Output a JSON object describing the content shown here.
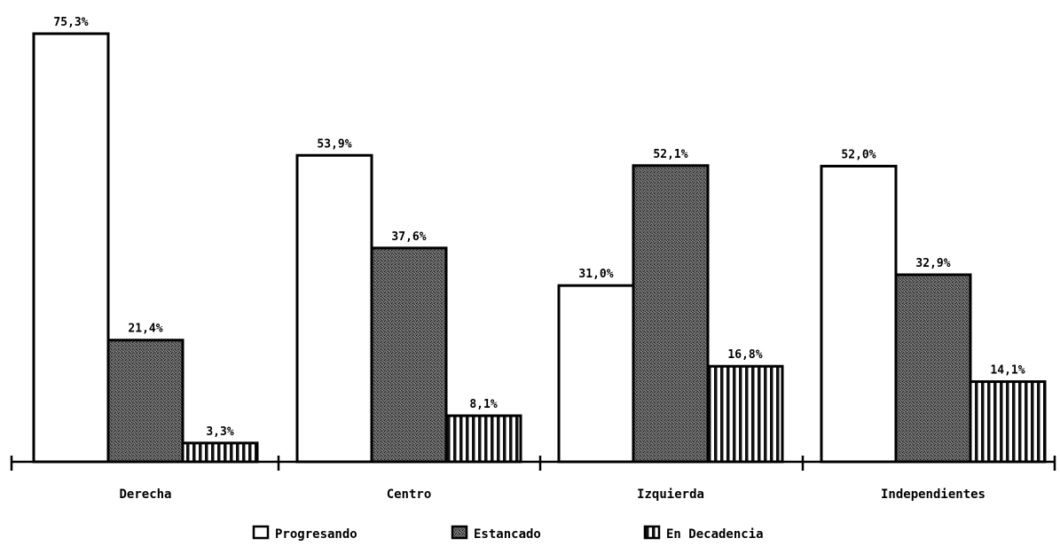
{
  "chart_data": {
    "type": "bar",
    "title": "",
    "xlabel": "",
    "ylabel": "",
    "categories": [
      "Derecha",
      "Centro",
      "Izquierda",
      "Independientes"
    ],
    "series": [
      {
        "name": "Progresando",
        "values": [
          75.3,
          53.9,
          31.0,
          52.0
        ],
        "labels": [
          "75,3%",
          "53,9%",
          "31,0%",
          "52,0%"
        ],
        "fill": "#ffffff",
        "pattern": "empty"
      },
      {
        "name": "Estancado",
        "values": [
          21.4,
          37.6,
          52.1,
          32.9
        ],
        "labels": [
          "21,4%",
          "37,6%",
          "52,1%",
          "32,9%"
        ],
        "fill": "#3a3a3a",
        "pattern": "stipple"
      },
      {
        "name": "En Decadencia",
        "values": [
          3.3,
          8.1,
          16.8,
          14.1
        ],
        "labels": [
          "3,3%",
          "8,1%",
          "16,8%",
          "14,1%"
        ],
        "fill": "#ffffff",
        "pattern": "vertical-stripes"
      }
    ],
    "ylim": [
      0,
      75.3
    ],
    "grid": false,
    "legend_position": "bottom"
  }
}
